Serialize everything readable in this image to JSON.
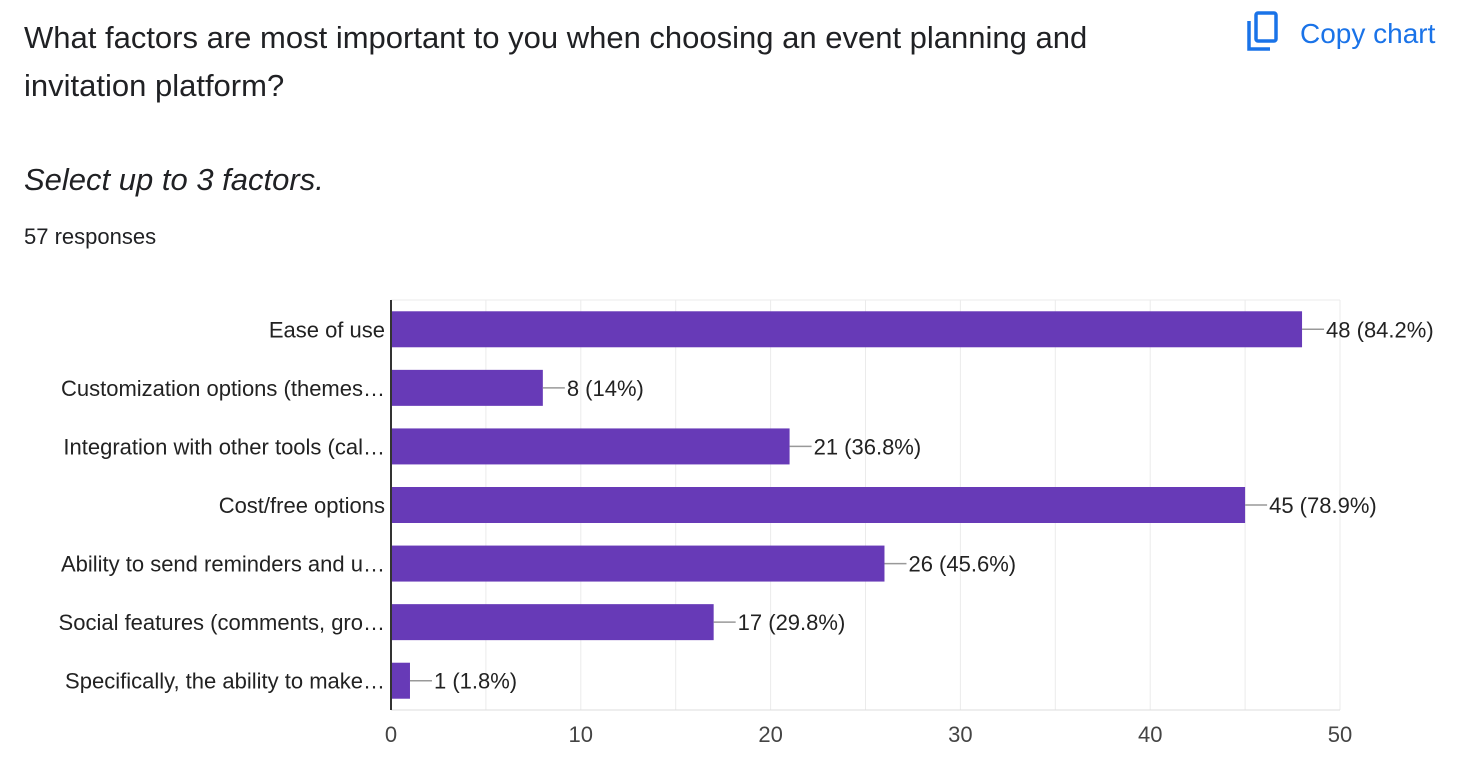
{
  "question": {
    "title": "What factors are most important to you when choosing an event planning and invitation platform?",
    "description": "Select up to 3 factors.",
    "responses": "57 responses"
  },
  "copy_chart": {
    "label": "Copy chart",
    "icon": "copy-icon",
    "color": "#1a73e8"
  },
  "chart_data": {
    "type": "bar",
    "orientation": "horizontal",
    "categories": [
      "Ease of use",
      "Customization options (themes…",
      "Integration with other tools (cal…",
      "Cost/free options",
      "Ability to send reminders and u…",
      "Social features (comments, gro…",
      "Specifically, the ability to make…"
    ],
    "values": [
      48,
      8,
      21,
      45,
      26,
      17,
      1
    ],
    "data_labels": [
      "48 (84.2%)",
      "8 (14%)",
      "21 (36.8%)",
      "45 (78.9%)",
      "26 (45.6%)",
      "17 (29.8%)",
      "1 (1.8%)"
    ],
    "xlim": [
      0,
      50
    ],
    "xticks": [
      0,
      10,
      20,
      30,
      40,
      50
    ],
    "grid": true,
    "bar_color": "#673ab7"
  }
}
